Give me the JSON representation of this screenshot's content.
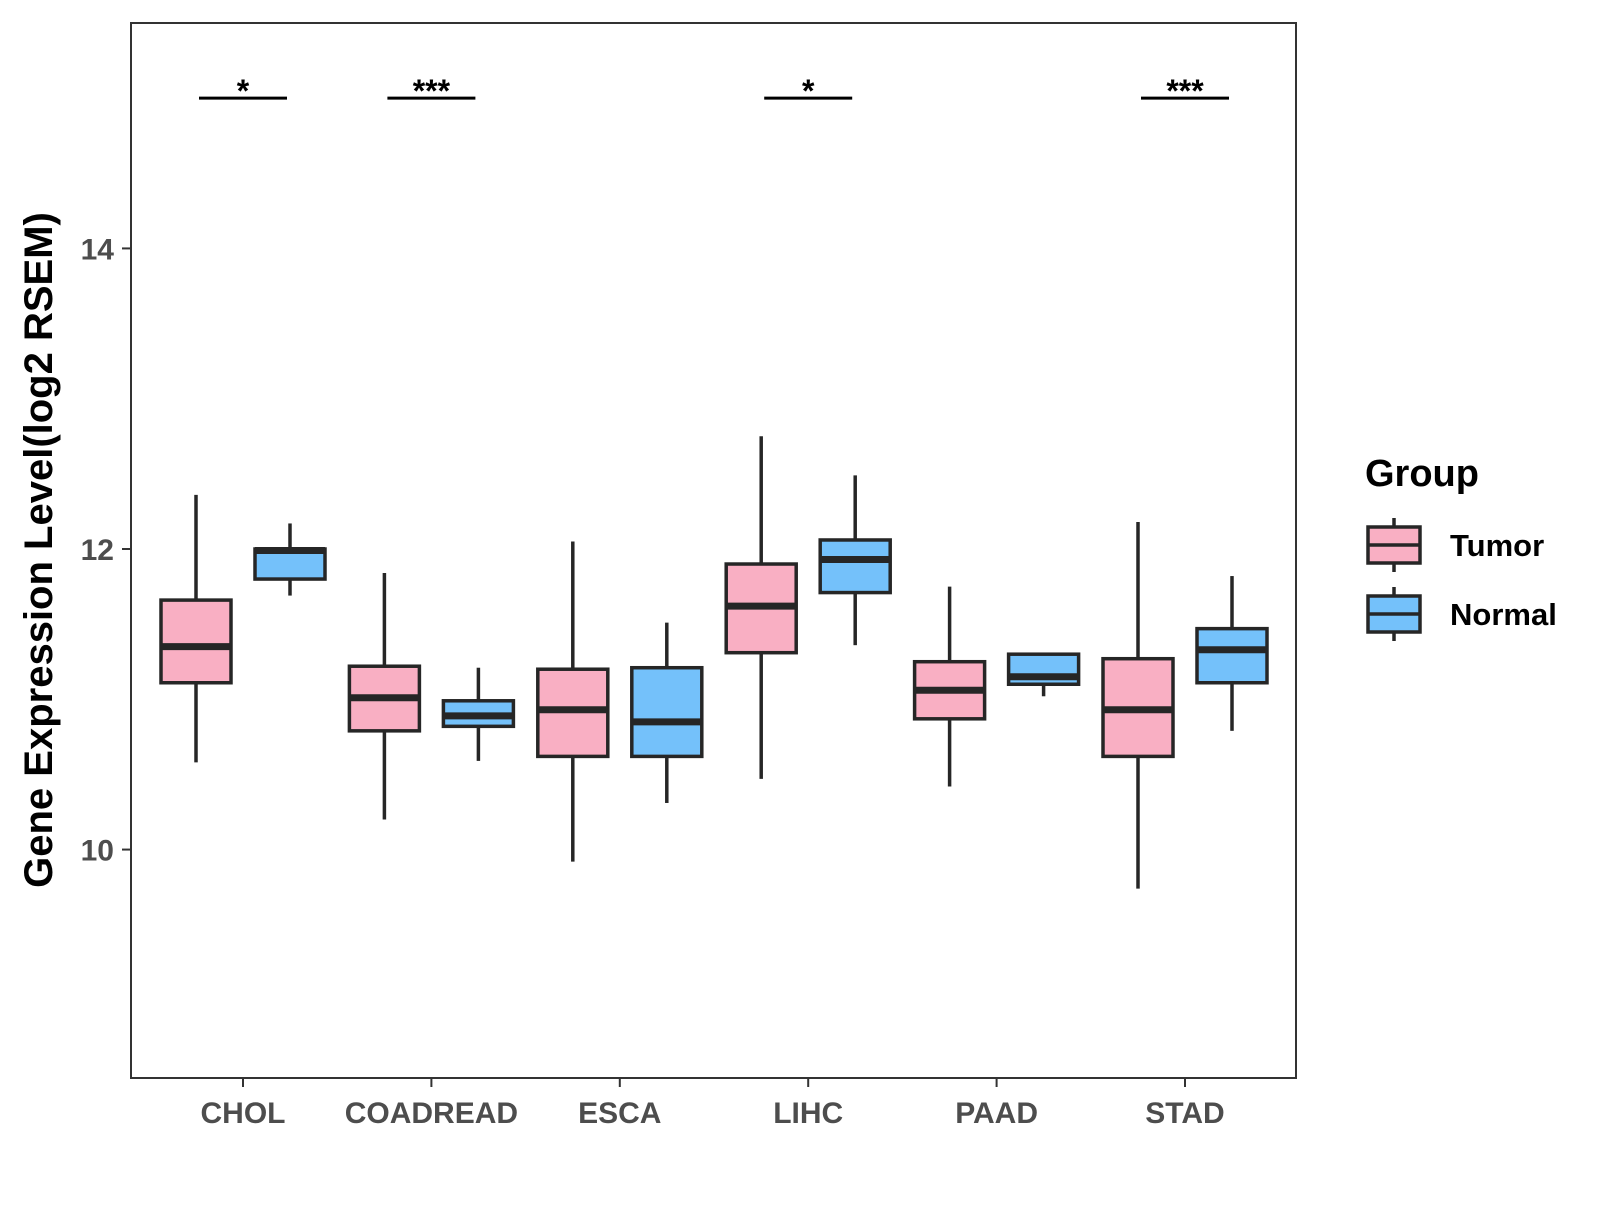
{
  "chart_data": {
    "type": "boxplot",
    "title": "",
    "xlabel": "",
    "ylabel": "Gene Expression Level(log2 RSEM)",
    "ylim": [
      8.48,
      15.5
    ],
    "yticks": [
      10,
      12,
      14
    ],
    "grid": false,
    "categories": [
      "CHOL",
      "COADREAD",
      "ESCA",
      "LIHC",
      "PAAD",
      "STAD"
    ],
    "legend": {
      "title": "Group",
      "placement": "right",
      "entries": [
        "Tumor",
        "Normal"
      ]
    },
    "series": [
      {
        "name": "Tumor",
        "color": "#f9afc3",
        "boxes": [
          {
            "category": "CHOL",
            "whisker_low": 10.58,
            "q1": 11.11,
            "median": 11.35,
            "q3": 11.66,
            "whisker_high": 12.36
          },
          {
            "category": "COADREAD",
            "whisker_low": 10.2,
            "q1": 10.79,
            "median": 11.01,
            "q3": 11.22,
            "whisker_high": 11.84
          },
          {
            "category": "ESCA",
            "whisker_low": 9.92,
            "q1": 10.62,
            "median": 10.93,
            "q3": 11.2,
            "whisker_high": 12.05
          },
          {
            "category": "LIHC",
            "whisker_low": 10.47,
            "q1": 11.31,
            "median": 11.62,
            "q3": 11.9,
            "whisker_high": 12.75
          },
          {
            "category": "PAAD",
            "whisker_low": 10.42,
            "q1": 10.87,
            "median": 11.06,
            "q3": 11.25,
            "whisker_high": 11.75
          },
          {
            "category": "STAD",
            "whisker_low": 9.74,
            "q1": 10.62,
            "median": 10.93,
            "q3": 11.27,
            "whisker_high": 12.18
          }
        ]
      },
      {
        "name": "Normal",
        "color": "#74c1fa",
        "boxes": [
          {
            "category": "CHOL",
            "whisker_low": 11.69,
            "q1": 11.8,
            "median": 11.99,
            "q3": 12.0,
            "whisker_high": 12.17
          },
          {
            "category": "COADREAD",
            "whisker_low": 10.59,
            "q1": 10.82,
            "median": 10.89,
            "q3": 10.99,
            "whisker_high": 11.21
          },
          {
            "category": "ESCA",
            "whisker_low": 10.31,
            "q1": 10.62,
            "median": 10.85,
            "q3": 11.21,
            "whisker_high": 11.51
          },
          {
            "category": "LIHC",
            "whisker_low": 11.36,
            "q1": 11.71,
            "median": 11.93,
            "q3": 12.06,
            "whisker_high": 12.49
          },
          {
            "category": "PAAD",
            "whisker_low": 11.02,
            "q1": 11.1,
            "median": 11.15,
            "q3": 11.3,
            "whisker_high": 11.3
          },
          {
            "category": "STAD",
            "whisker_low": 10.79,
            "q1": 11.11,
            "median": 11.33,
            "q3": 11.47,
            "whisker_high": 11.82
          }
        ]
      }
    ],
    "annotations": [
      {
        "category": "CHOL",
        "label": "*",
        "y": 15.0
      },
      {
        "category": "COADREAD",
        "label": "***",
        "y": 15.0
      },
      {
        "category": "LIHC",
        "label": "*",
        "y": 15.0
      },
      {
        "category": "STAD",
        "label": "***",
        "y": 15.0
      }
    ]
  }
}
